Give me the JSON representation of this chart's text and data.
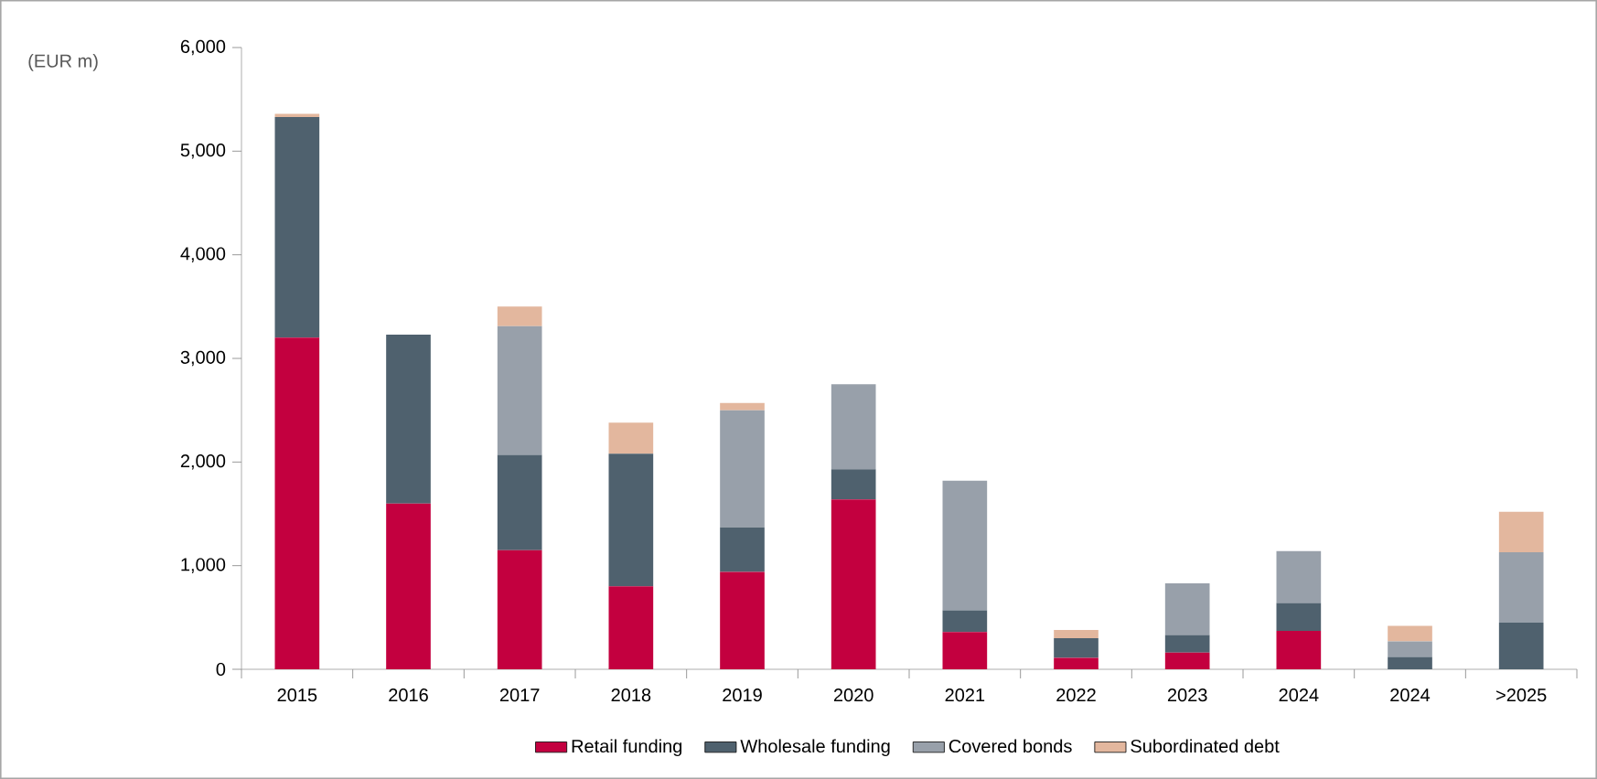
{
  "chart_data": {
    "type": "bar",
    "stacked": true,
    "ylabel": "(EUR m)",
    "categories": [
      "2015",
      "2016",
      "2017",
      "2018",
      "2019",
      "2020",
      "2021",
      "2022",
      "2023",
      "2024",
      "2024",
      ">2025"
    ],
    "series": [
      {
        "name": "Retail funding",
        "color": "#c3003f",
        "values": [
          3200,
          1600,
          1150,
          800,
          940,
          1640,
          360,
          110,
          160,
          370,
          0,
          0
        ]
      },
      {
        "name": "Wholesale funding",
        "color": "#4f616e",
        "values": [
          2130,
          1630,
          920,
          1280,
          430,
          290,
          210,
          190,
          170,
          270,
          120,
          450
        ]
      },
      {
        "name": "Covered bonds",
        "color": "#98a0aa",
        "values": [
          0,
          0,
          1240,
          0,
          1130,
          820,
          1250,
          0,
          500,
          500,
          150,
          680
        ]
      },
      {
        "name": "Subordinated debt",
        "color": "#e3b79e",
        "values": [
          30,
          0,
          190,
          300,
          70,
          0,
          0,
          80,
          0,
          0,
          150,
          390
        ]
      }
    ],
    "ylim": [
      0,
      6000
    ],
    "yticks": [
      {
        "value": 0,
        "label": "0"
      },
      {
        "value": 1000,
        "label": "1,000"
      },
      {
        "value": 2000,
        "label": "2,000"
      },
      {
        "value": 3000,
        "label": "3,000"
      },
      {
        "value": 4000,
        "label": "4,000"
      },
      {
        "value": 5000,
        "label": "5,000"
      },
      {
        "value": 6000,
        "label": "6,000"
      }
    ],
    "grid": false,
    "legend": "bottom"
  }
}
